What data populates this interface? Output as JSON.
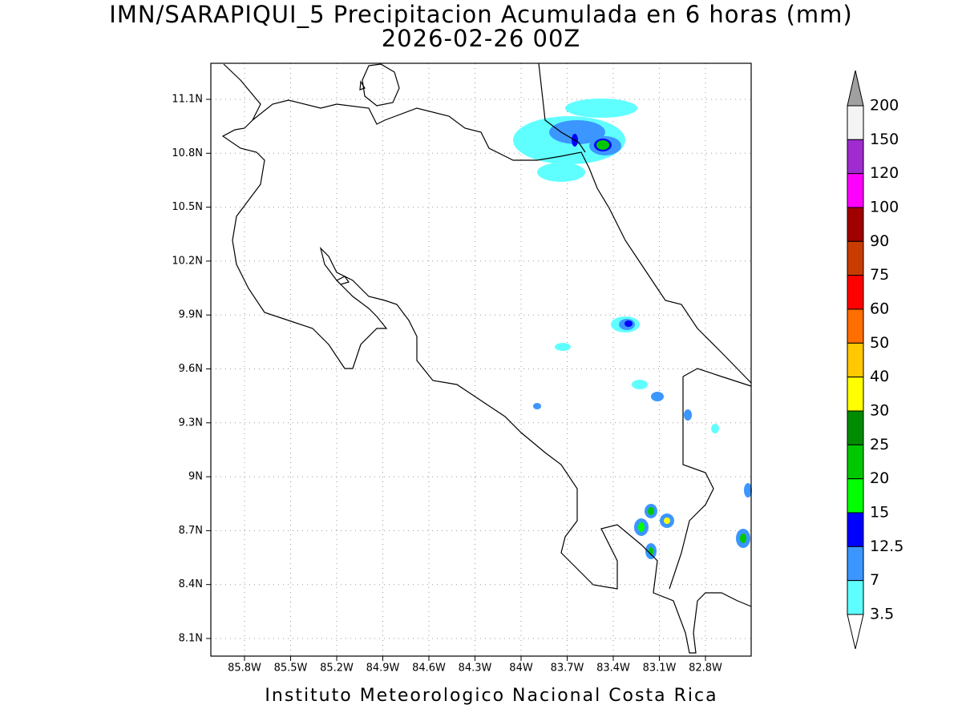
{
  "header": {
    "title": "IMN/SARAPIQUI_5 Precipitacion Acumulada en 6 horas (mm)",
    "subtitle": "2026-02-26 00Z"
  },
  "map": {
    "lat_labels": [
      "11.1N",
      "10.8N",
      "10.5N",
      "10.2N",
      "9.9N",
      "9.6N",
      "9.3N",
      "9N",
      "8.7N",
      "8.4N",
      "8.1N"
    ],
    "lon_labels": [
      "85.8W",
      "85.5W",
      "85.2W",
      "84.9W",
      "84.6W",
      "84.3W",
      "84W",
      "83.7W",
      "83.4W",
      "83.1W",
      "82.8W"
    ]
  },
  "colorbar": {
    "labels": [
      "200",
      "150",
      "120",
      "100",
      "90",
      "75",
      "60",
      "50",
      "40",
      "30",
      "25",
      "20",
      "15",
      "12.5",
      "7",
      "3.5"
    ],
    "colors": [
      "#f4f4f4",
      "#a02cd0",
      "#ff00ff",
      "#a00000",
      "#c83c00",
      "#ff0000",
      "#ff6e00",
      "#ffc800",
      "#ffff00",
      "#008c00",
      "#00c800",
      "#00ff00",
      "#0000ff",
      "#3c96ff",
      "#60ffff"
    ],
    "over_color": "#a0a0a0",
    "under_color": "#ffffff"
  },
  "footer": "Instituto Meteorologico Nacional Costa Rica"
}
